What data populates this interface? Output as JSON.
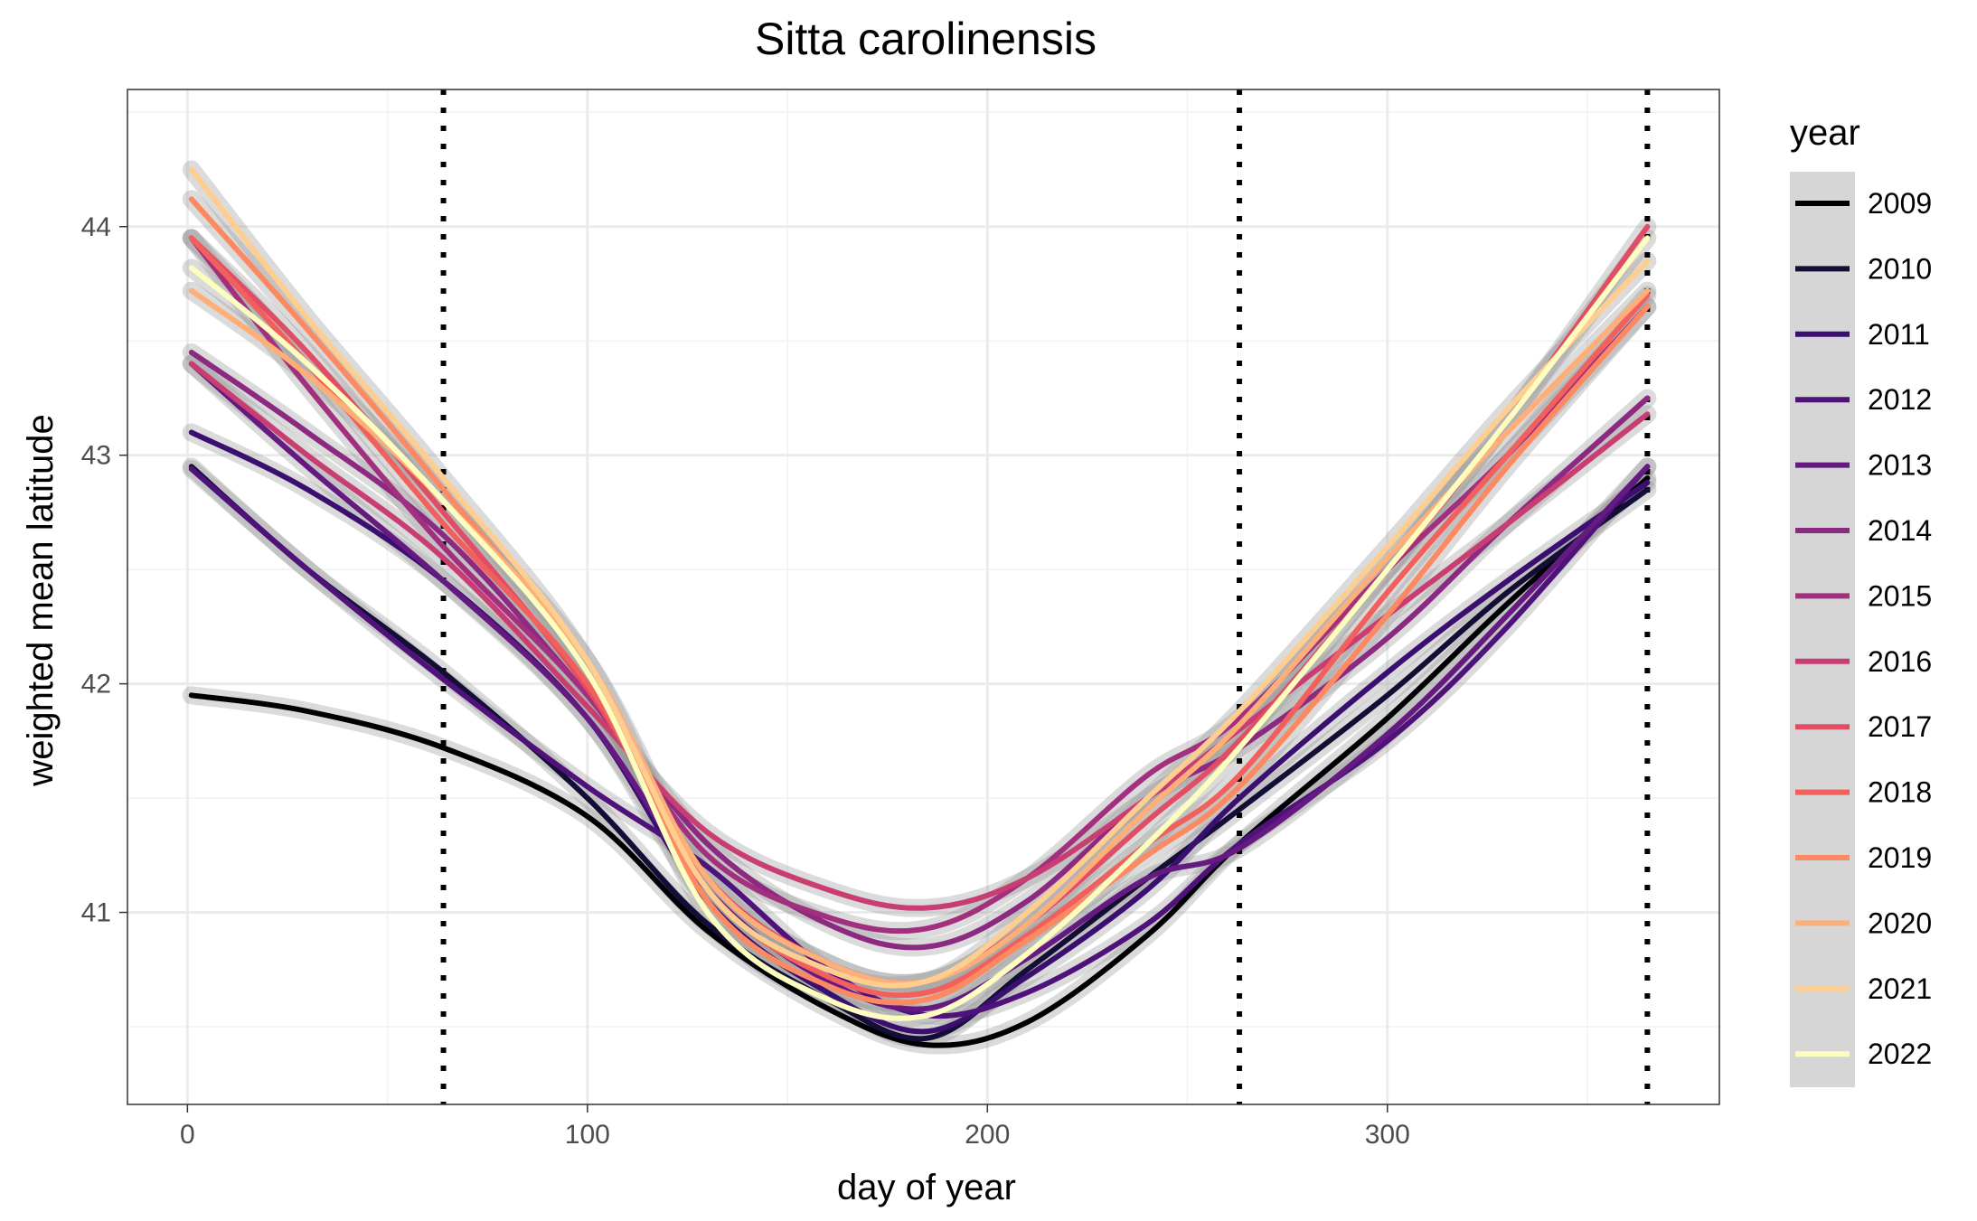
{
  "chart_data": {
    "type": "line",
    "title": "Sitta carolinensis",
    "xlabel": "day of year",
    "ylabel": "weighted mean latitude",
    "xlim": [
      -15,
      383
    ],
    "ylim": [
      40.16,
      44.6
    ],
    "xticks": [
      0,
      100,
      200,
      300
    ],
    "yticks": [
      41,
      42,
      43,
      44
    ],
    "grid": true,
    "confidence_bands": true,
    "legend": {
      "title": "year",
      "position": "right"
    },
    "vlines": [
      64,
      263,
      365
    ],
    "vline_style": "dotted",
    "series": [
      {
        "name": "2009",
        "color": "#000004",
        "x": [
          1,
          30,
          64,
          100,
          130,
          160,
          185,
          210,
          240,
          263,
          300,
          330,
          365
        ],
        "y": [
          41.95,
          41.88,
          41.72,
          41.42,
          40.92,
          40.58,
          40.42,
          40.52,
          40.9,
          41.3,
          41.85,
          42.35,
          42.9
        ]
      },
      {
        "name": "2010",
        "color": "#140E36",
        "x": [
          1,
          30,
          64,
          100,
          130,
          160,
          185,
          210,
          240,
          263,
          300,
          330,
          365
        ],
        "y": [
          42.95,
          42.5,
          42.05,
          41.5,
          40.95,
          40.62,
          40.45,
          40.75,
          41.15,
          41.45,
          41.95,
          42.4,
          42.85
        ]
      },
      {
        "name": "2011",
        "color": "#3B0F70",
        "x": [
          1,
          30,
          64,
          100,
          130,
          160,
          185,
          210,
          240,
          263,
          300,
          330,
          365
        ],
        "y": [
          43.1,
          42.85,
          42.45,
          41.85,
          41.05,
          40.65,
          40.48,
          40.72,
          41.1,
          41.5,
          42.05,
          42.45,
          42.88
        ]
      },
      {
        "name": "2012",
        "color": "#4F127B",
        "x": [
          1,
          30,
          64,
          100,
          130,
          160,
          185,
          210,
          240,
          263,
          300,
          330,
          365
        ],
        "y": [
          42.94,
          42.5,
          42.02,
          41.55,
          41.2,
          40.75,
          40.55,
          40.65,
          40.95,
          41.3,
          41.75,
          42.25,
          42.95
        ]
      },
      {
        "name": "2013",
        "color": "#641A80",
        "x": [
          1,
          30,
          64,
          100,
          130,
          160,
          185,
          210,
          240,
          263,
          300,
          330,
          365
        ],
        "y": [
          43.4,
          42.95,
          42.45,
          41.85,
          41.1,
          40.7,
          40.58,
          40.8,
          41.15,
          41.28,
          41.78,
          42.3,
          42.95
        ]
      },
      {
        "name": "2014",
        "color": "#8C2981",
        "x": [
          1,
          30,
          64,
          100,
          130,
          160,
          185,
          210,
          240,
          263,
          300,
          330,
          365
        ],
        "y": [
          43.45,
          43.1,
          42.65,
          41.95,
          41.3,
          40.95,
          40.85,
          41.05,
          41.5,
          41.72,
          42.2,
          42.7,
          43.25
        ]
      },
      {
        "name": "2015",
        "color": "#A3307E",
        "x": [
          1,
          30,
          64,
          100,
          130,
          160,
          185,
          210,
          240,
          263,
          300,
          330,
          365
        ],
        "y": [
          43.95,
          43.3,
          42.6,
          41.95,
          41.25,
          40.98,
          40.93,
          41.15,
          41.6,
          41.85,
          42.5,
          43.0,
          43.65
        ]
      },
      {
        "name": "2016",
        "color": "#C83E73",
        "x": [
          1,
          30,
          64,
          100,
          130,
          160,
          185,
          210,
          240,
          263,
          300,
          330,
          365
        ],
        "y": [
          43.4,
          43.0,
          42.55,
          41.9,
          41.35,
          41.1,
          41.02,
          41.15,
          41.5,
          41.8,
          42.3,
          42.7,
          43.18
        ]
      },
      {
        "name": "2017",
        "color": "#E24D66",
        "x": [
          1,
          30,
          64,
          100,
          130,
          160,
          185,
          210,
          240,
          263,
          300,
          330,
          365
        ],
        "y": [
          43.95,
          43.45,
          42.75,
          41.98,
          41.15,
          40.78,
          40.7,
          40.95,
          41.4,
          41.75,
          42.5,
          43.15,
          44.0
        ]
      },
      {
        "name": "2018",
        "color": "#F1605D",
        "x": [
          1,
          30,
          64,
          100,
          130,
          160,
          185,
          210,
          240,
          263,
          300,
          330,
          365
        ],
        "y": [
          43.95,
          43.4,
          42.7,
          42.0,
          41.1,
          40.72,
          40.65,
          40.9,
          41.3,
          41.6,
          42.4,
          43.0,
          43.7
        ]
      },
      {
        "name": "2019",
        "color": "#FC8961",
        "x": [
          1,
          30,
          64,
          100,
          130,
          160,
          185,
          210,
          240,
          263,
          300,
          330,
          365
        ],
        "y": [
          44.12,
          43.55,
          42.85,
          42.05,
          41.05,
          40.68,
          40.62,
          40.88,
          41.25,
          41.55,
          42.3,
          42.95,
          43.65
        ]
      },
      {
        "name": "2020",
        "color": "#FEAF77",
        "x": [
          1,
          30,
          64,
          100,
          130,
          160,
          185,
          210,
          240,
          263,
          300,
          330,
          365
        ],
        "y": [
          43.72,
          43.35,
          42.8,
          42.1,
          41.15,
          40.78,
          40.7,
          40.95,
          41.45,
          41.82,
          42.55,
          43.1,
          43.72
        ]
      },
      {
        "name": "2021",
        "color": "#FECE91",
        "x": [
          1,
          30,
          64,
          100,
          130,
          160,
          185,
          210,
          240,
          263,
          300,
          330,
          365
        ],
        "y": [
          44.25,
          43.6,
          42.9,
          42.1,
          41.1,
          40.75,
          40.7,
          41.0,
          41.5,
          41.88,
          42.6,
          43.2,
          43.85
        ]
      },
      {
        "name": "2022",
        "color": "#FCFDBF",
        "x": [
          1,
          30,
          64,
          100,
          130,
          160,
          185,
          210,
          240,
          263,
          300,
          330,
          365
        ],
        "y": [
          43.82,
          43.4,
          42.8,
          42.05,
          41.0,
          40.62,
          40.55,
          40.82,
          41.3,
          41.72,
          42.5,
          43.15,
          43.95
        ]
      }
    ]
  }
}
